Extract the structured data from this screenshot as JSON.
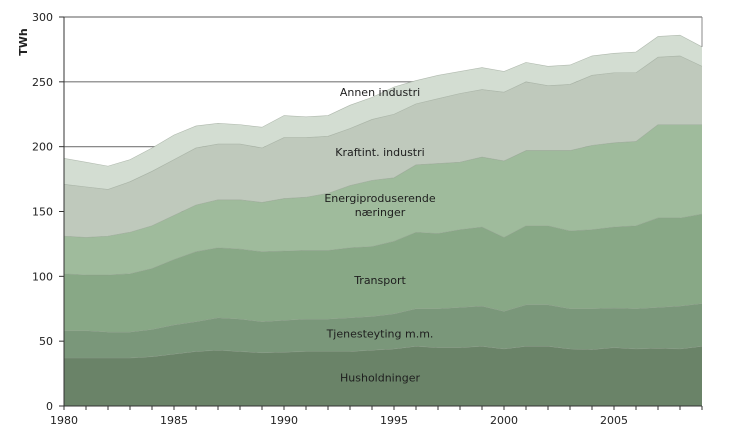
{
  "chart_data": {
    "type": "area",
    "stacked": true,
    "title": "",
    "xlabel": "",
    "ylabel": "TWh",
    "ylim": [
      0,
      300
    ],
    "xlim": [
      1980,
      2009
    ],
    "yticks": [
      0,
      50,
      100,
      150,
      200,
      250,
      300
    ],
    "xtick_labels": [
      "1980",
      "1985",
      "1990",
      "1995",
      "2000",
      "2005"
    ],
    "grid": {
      "y": true,
      "x": false,
      "gridlines_visible_above_areas": [
        200,
        250,
        300
      ]
    },
    "legend": "inline-area-labels",
    "x": [
      1980,
      1981,
      1982,
      1983,
      1984,
      1985,
      1986,
      1987,
      1988,
      1989,
      1990,
      1991,
      1992,
      1993,
      1994,
      1995,
      1996,
      1997,
      1998,
      1999,
      2000,
      2001,
      2002,
      2003,
      2004,
      2005,
      2006,
      2007,
      2008,
      2009
    ],
    "series": [
      {
        "name": "Husholdninger",
        "label_lines": [
          "Husholdninger"
        ],
        "color": "#6a8368",
        "label_pos": [
          1994,
          22
        ],
        "values": [
          37,
          37,
          37,
          37,
          38,
          40,
          42,
          43,
          42,
          41,
          41.5,
          42,
          42,
          42,
          43,
          44,
          46,
          45,
          45,
          46,
          44,
          46,
          46,
          44,
          43.5,
          45,
          44,
          44.5,
          44,
          46
        ]
      },
      {
        "name": "Tjenesteyting m.m.",
        "label_lines": [
          "Tjenesteyting m.m."
        ],
        "color": "#7a977a",
        "label_pos": [
          1994,
          56
        ],
        "values": [
          21,
          21,
          20,
          20,
          21,
          22.5,
          23,
          25,
          25,
          24,
          24.5,
          25,
          25,
          26,
          26,
          27,
          29,
          30,
          31,
          31,
          29,
          32,
          32,
          31,
          31.5,
          30.5,
          31,
          31.5,
          33,
          33
        ]
      },
      {
        "name": "Transport",
        "label_lines": [
          "Transport"
        ],
        "color": "#88a886",
        "label_pos": [
          1994,
          97
        ],
        "values": [
          44,
          43,
          44,
          45,
          47,
          50.5,
          54,
          54,
          54,
          54,
          53.5,
          53,
          53,
          54,
          54,
          56,
          59,
          58,
          60,
          61,
          57,
          61,
          61,
          60,
          61,
          62.5,
          64,
          69,
          68,
          69
        ]
      },
      {
        "name": "Energiproduserende næringer",
        "label_lines": [
          "Energiproduserende",
          "næringer"
        ],
        "color": "#9fbb9c",
        "label_pos": [
          1994,
          155
        ],
        "values": [
          29,
          29,
          30,
          32,
          33,
          34,
          36,
          37,
          38,
          38,
          40.5,
          41,
          44,
          48,
          51,
          49,
          52,
          54,
          52,
          54,
          59,
          58,
          58,
          62,
          65,
          65,
          65,
          72,
          72,
          69
        ]
      },
      {
        "name": "Kraftint. industri",
        "label_lines": [
          "Kraftint. industri"
        ],
        "color": "#bfc9bc",
        "label_pos": [
          1994,
          196
        ],
        "values": [
          40,
          39,
          36,
          39,
          42,
          43,
          44,
          43,
          43,
          42,
          47,
          46,
          44,
          44,
          47,
          49,
          47,
          50,
          53,
          52,
          53,
          53,
          50,
          51,
          54,
          54,
          53,
          52,
          53,
          45
        ]
      },
      {
        "name": "Annen industri",
        "label_lines": [
          "Annen industri"
        ],
        "color": "#d3ddd2",
        "label_pos": [
          1994,
          242
        ],
        "values": [
          20,
          19,
          18,
          17,
          18,
          19,
          17,
          16,
          15,
          16,
          17,
          16,
          16,
          18,
          17,
          21,
          18,
          18,
          17,
          17,
          16,
          15,
          15,
          15,
          15,
          15,
          16,
          16,
          16,
          15
        ]
      }
    ]
  },
  "axis": {
    "y_title": "TWh",
    "y_tick_labels": [
      "0",
      "50",
      "100",
      "150",
      "200",
      "250",
      "300"
    ],
    "x_tick_labels": [
      "1980",
      "1985",
      "1990",
      "1995",
      "2000",
      "2005"
    ]
  },
  "style": {
    "gridline_color": "#7a7a7a",
    "axis_color": "#333333",
    "series_edge_color": "#8d9a8a"
  }
}
